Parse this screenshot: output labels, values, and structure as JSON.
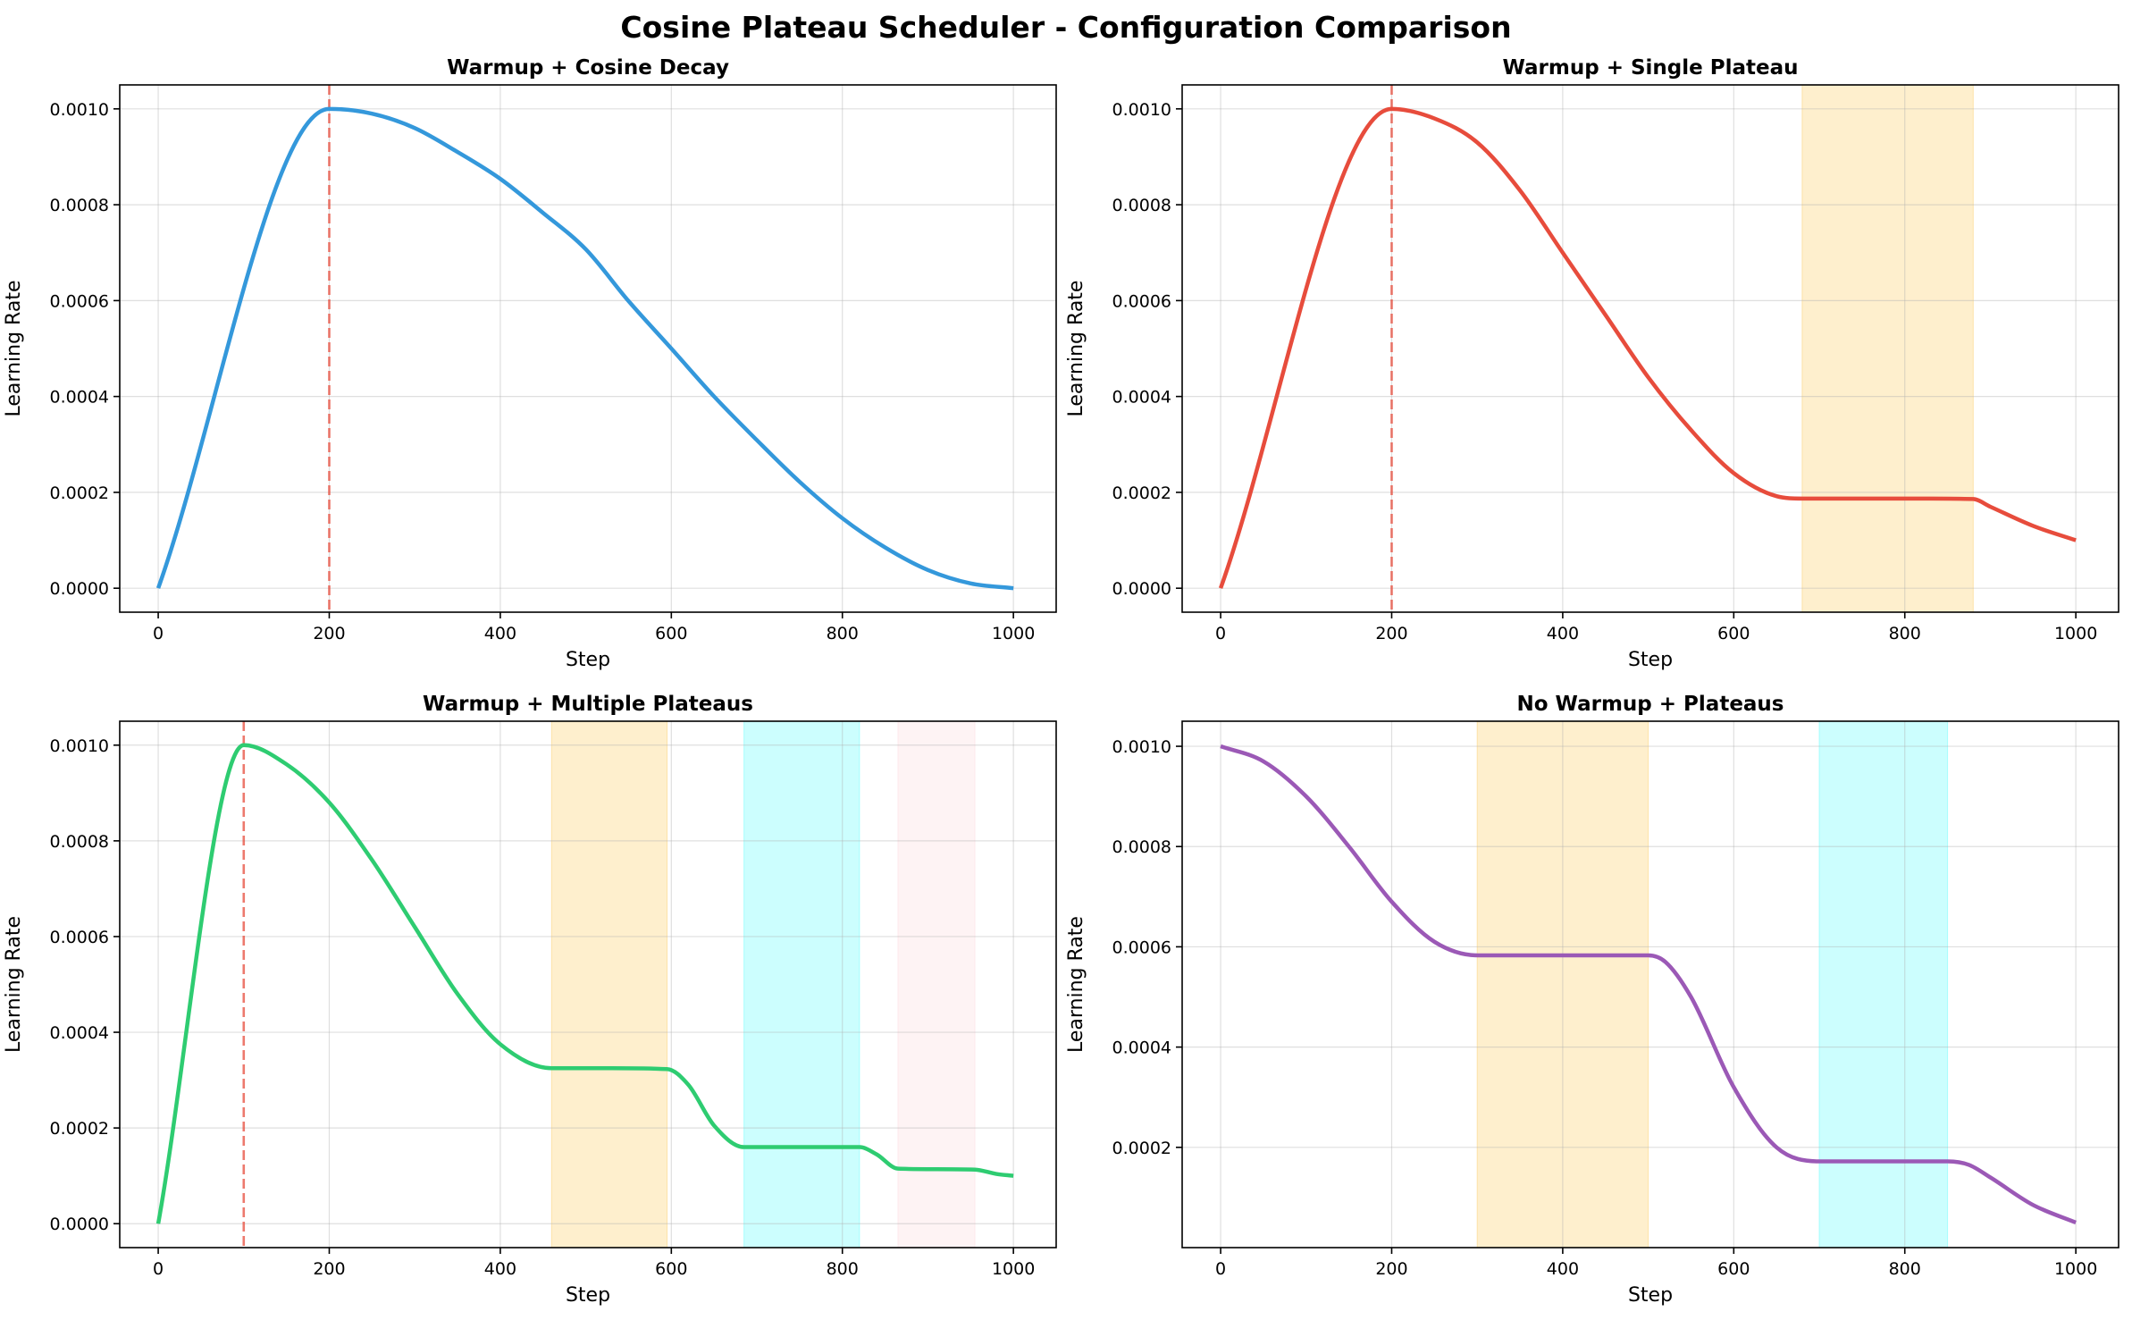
{
  "figure": {
    "title": "Cosine Plateau Scheduler - Configuration Comparison"
  },
  "chart_data": [
    {
      "type": "line",
      "title": "Warmup + Cosine Decay",
      "xlabel": "Step",
      "ylabel": "Learning Rate",
      "xlim": [
        -45,
        1050
      ],
      "ylim": [
        -5e-05,
        0.00105
      ],
      "xticks": [
        0,
        200,
        400,
        600,
        800,
        1000
      ],
      "yticks": [
        0.0,
        0.0002,
        0.0004,
        0.0006,
        0.0008,
        0.001
      ],
      "ytick_labels": [
        "0.0000",
        "0.0002",
        "0.0004",
        "0.0006",
        "0.0008",
        "0.0010"
      ],
      "grid": true,
      "color": "#3498db",
      "warmup_line": 200,
      "warmup_color": "#e74c3c",
      "plateaus": [],
      "x": [
        0,
        200,
        250,
        300,
        350,
        400,
        450,
        500,
        550,
        600,
        650,
        700,
        750,
        800,
        850,
        900,
        950,
        1000
      ],
      "values": [
        0,
        0.001,
        0.00099,
        0.00096,
        0.00091,
        0.000854,
        0.000783,
        0.000707,
        0.000599,
        0.0005,
        0.0004,
        0.000309,
        0.000222,
        0.000146,
        8.5e-05,
        3.8e-05,
        1e-05,
        0
      ]
    },
    {
      "type": "line",
      "title": "Warmup + Single Plateau",
      "xlabel": "Step",
      "ylabel": "Learning Rate",
      "xlim": [
        -45,
        1050
      ],
      "ylim": [
        -5e-05,
        0.00105
      ],
      "xticks": [
        0,
        200,
        400,
        600,
        800,
        1000
      ],
      "yticks": [
        0.0,
        0.0002,
        0.0004,
        0.0006,
        0.0008,
        0.001
      ],
      "ytick_labels": [
        "0.0000",
        "0.0002",
        "0.0004",
        "0.0006",
        "0.0008",
        "0.0010"
      ],
      "grid": true,
      "color": "#e74c3c",
      "warmup_line": 200,
      "warmup_color": "#e74c3c",
      "plateaus": [
        {
          "start": 680,
          "end": 880,
          "color": "#fcd682"
        }
      ],
      "x": [
        0,
        200,
        250,
        300,
        350,
        400,
        450,
        500,
        550,
        600,
        650,
        680,
        750,
        820,
        880,
        900,
        950,
        1000
      ],
      "values": [
        0,
        0.001,
        0.00098,
        0.00093,
        0.00083,
        0.0007,
        0.00057,
        0.00044,
        0.00033,
        0.00024,
        0.000192,
        0.000187,
        0.000187,
        0.000187,
        0.000186,
        0.00017,
        0.00013,
        0.0001
      ]
    },
    {
      "type": "line",
      "title": "Warmup + Multiple Plateaus",
      "xlabel": "Step",
      "ylabel": "Learning Rate",
      "xlim": [
        -45,
        1050
      ],
      "ylim": [
        -5e-05,
        0.00105
      ],
      "xticks": [
        0,
        200,
        400,
        600,
        800,
        1000
      ],
      "yticks": [
        0.0,
        0.0002,
        0.0004,
        0.0006,
        0.0008,
        0.001
      ],
      "ytick_labels": [
        "0.0000",
        "0.0002",
        "0.0004",
        "0.0006",
        "0.0008",
        "0.0010"
      ],
      "grid": true,
      "color": "#2ecc71",
      "warmup_line": 100,
      "warmup_color": "#e74c3c",
      "plateaus": [
        {
          "start": 460,
          "end": 595,
          "color": "#fcd682"
        },
        {
          "start": 685,
          "end": 820,
          "color": "#7ffdfd"
        },
        {
          "start": 865,
          "end": 955,
          "color": "#fde0e4"
        }
      ],
      "x": [
        0,
        100,
        150,
        200,
        250,
        300,
        350,
        400,
        460,
        530,
        595,
        620,
        650,
        685,
        750,
        820,
        840,
        865,
        910,
        955,
        980,
        1000
      ],
      "values": [
        0,
        0.001,
        0.00096,
        0.00088,
        0.00076,
        0.00062,
        0.00048,
        0.000375,
        0.000325,
        0.000325,
        0.000323,
        0.00029,
        0.000205,
        0.00016,
        0.00016,
        0.00016,
        0.000145,
        0.000115,
        0.000114,
        0.000113,
        0.000104,
        0.0001
      ]
    },
    {
      "type": "line",
      "title": "No Warmup + Plateaus",
      "xlabel": "Step",
      "ylabel": "Learning Rate",
      "xlim": [
        -45,
        1050
      ],
      "ylim": [
        0.0,
        0.00105
      ],
      "xticks": [
        0,
        200,
        400,
        600,
        800,
        1000
      ],
      "yticks": [
        0.0002,
        0.0004,
        0.0006,
        0.0008,
        0.001
      ],
      "ytick_labels": [
        "0.0002",
        "0.0004",
        "0.0006",
        "0.0008",
        "0.0010"
      ],
      "grid": true,
      "color": "#9b59b6",
      "warmup_line": null,
      "plateaus": [
        {
          "start": 300,
          "end": 500,
          "color": "#fcd682"
        },
        {
          "start": 700,
          "end": 850,
          "color": "#7ffdfd"
        }
      ],
      "x": [
        0,
        50,
        100,
        150,
        200,
        250,
        300,
        400,
        500,
        520,
        550,
        600,
        650,
        700,
        775,
        850,
        875,
        900,
        950,
        1000
      ],
      "values": [
        0.001,
        0.00097,
        0.0009,
        0.0008,
        0.00069,
        0.00061,
        0.000583,
        0.000583,
        0.000583,
        0.00057,
        0.0005,
        0.00032,
        0.0002,
        0.000172,
        0.000172,
        0.000172,
        0.000165,
        0.00014,
        8.5e-05,
        5e-05
      ]
    }
  ]
}
